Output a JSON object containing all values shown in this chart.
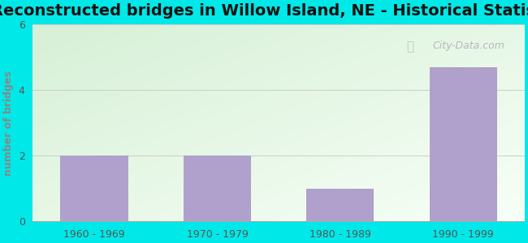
{
  "title": "Reconstructed bridges in Willow Island, NE - Historical Statistics",
  "categories": [
    "1960 - 1969",
    "1970 - 1979",
    "1980 - 1989",
    "1990 - 1999"
  ],
  "values": [
    2,
    2,
    1,
    4.7
  ],
  "bar_color": "#b0a0cc",
  "ylabel": "number of bridges",
  "ylabel_color": "#888888",
  "ylim": [
    0,
    6
  ],
  "yticks": [
    0,
    2,
    4,
    6
  ],
  "background_color": "#00e8e8",
  "title_fontsize": 14,
  "axis_label_fontsize": 9,
  "tick_fontsize": 9,
  "watermark": "City-Data.com",
  "gradient_color_topleft": [
    0.84,
    0.94,
    0.84
  ],
  "gradient_color_bottomright": [
    0.97,
    1.0,
    0.97
  ]
}
